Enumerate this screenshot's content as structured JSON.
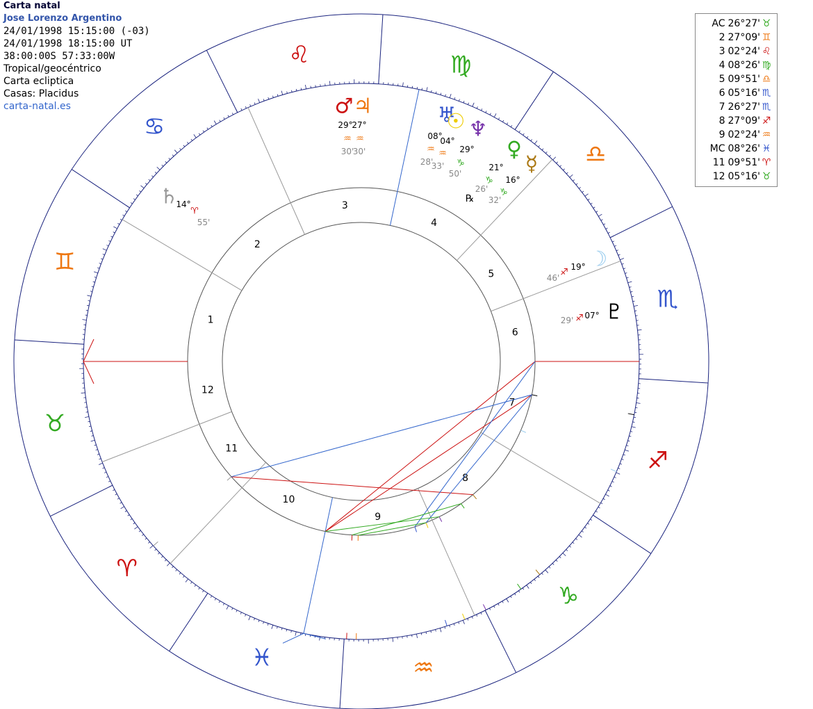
{
  "header": {
    "title": "Carta natal",
    "name": "Jose Lorenzo Argentino",
    "local_time": "24/01/1998 15:15:00 (-03)",
    "ut_time": "24/01/1998 18:15:00 UT",
    "coords": "38:00:00S 57:33:00W",
    "system": "Tropical/geocéntrico",
    "chart_type": "Carta ecliptica",
    "houses": "Casas: Placidus",
    "site": "carta-natal.es"
  },
  "house_cusps_table": [
    {
      "label": "AC",
      "value": "26°27'",
      "sign": "♉",
      "color": "#33aa22"
    },
    {
      "label": "2",
      "value": "27°09'",
      "sign": "♊",
      "color": "#ee7711"
    },
    {
      "label": "3",
      "value": "02°24'",
      "sign": "♌",
      "color": "#cc1111"
    },
    {
      "label": "4",
      "value": "08°26'",
      "sign": "♍",
      "color": "#33aa22"
    },
    {
      "label": "5",
      "value": "09°51'",
      "sign": "♎",
      "color": "#ee7711"
    },
    {
      "label": "6",
      "value": "05°16'",
      "sign": "♏",
      "color": "#3355cc"
    },
    {
      "label": "7",
      "value": "26°27'",
      "sign": "♏",
      "color": "#3355cc"
    },
    {
      "label": "8",
      "value": "27°09'",
      "sign": "♐",
      "color": "#cc1111"
    },
    {
      "label": "9",
      "value": "02°24'",
      "sign": "♒",
      "color": "#ee7711"
    },
    {
      "label": "MC",
      "value": "08°26'",
      "sign": "♓",
      "color": "#3355cc"
    },
    {
      "label": "11",
      "value": "09°51'",
      "sign": "♈",
      "color": "#cc1111"
    },
    {
      "label": "12",
      "value": "05°16'",
      "sign": "♉",
      "color": "#33aa22"
    }
  ],
  "zodiac_signs": [
    {
      "name": "aries",
      "glyph": "♈",
      "color": "#cc1111"
    },
    {
      "name": "taurus",
      "glyph": "♉",
      "color": "#33aa22"
    },
    {
      "name": "gemini",
      "glyph": "♊",
      "color": "#ee7711"
    },
    {
      "name": "cancer",
      "glyph": "♋",
      "color": "#3355cc"
    },
    {
      "name": "leo",
      "glyph": "♌",
      "color": "#cc1111"
    },
    {
      "name": "virgo",
      "glyph": "♍",
      "color": "#33aa22"
    },
    {
      "name": "libra",
      "glyph": "♎",
      "color": "#ee7711"
    },
    {
      "name": "scorpio",
      "glyph": "♏",
      "color": "#3355cc"
    },
    {
      "name": "sagittarius",
      "glyph": "♐",
      "color": "#cc1111"
    },
    {
      "name": "capricorn",
      "glyph": "♑",
      "color": "#33aa22"
    },
    {
      "name": "aquarius",
      "glyph": "♒",
      "color": "#ee7711"
    },
    {
      "name": "pisces",
      "glyph": "♓",
      "color": "#3355cc"
    }
  ],
  "house_numbers": [
    "1",
    "2",
    "3",
    "4",
    "5",
    "6",
    "7",
    "8",
    "9",
    "10",
    "11",
    "12"
  ],
  "planets": [
    {
      "name": "mars",
      "glyph": "♂",
      "color": "#cc1111",
      "deg": "29°",
      "sign_glyph": "♒",
      "min": "30'"
    },
    {
      "name": "jupiter",
      "glyph": "♃",
      "color": "#ee7711",
      "deg": "27°",
      "sign_glyph": "♒",
      "min": "30'"
    },
    {
      "name": "uranus",
      "glyph": "♅",
      "color": "#3355cc",
      "deg": "08°",
      "sign_glyph": "♒",
      "min": "28'"
    },
    {
      "name": "sun",
      "glyph": "☉",
      "color": "#eecc00",
      "deg": "04°",
      "sign_glyph": "♒",
      "min": "33'"
    },
    {
      "name": "neptune",
      "glyph": "♆",
      "color": "#7733aa",
      "deg": "29°",
      "sign_glyph": "♑",
      "min": "50'"
    },
    {
      "name": "venus",
      "glyph": "♀",
      "color": "#33aa22",
      "deg": "21°",
      "sign_glyph": "♑",
      "min": "26'",
      "retro": "℞"
    },
    {
      "name": "mercury",
      "glyph": "☿",
      "color": "#aa7711",
      "deg": "16°",
      "sign_glyph": "♑",
      "min": "32'"
    },
    {
      "name": "moon",
      "glyph": "☽",
      "color": "#99ccee",
      "deg": "19°",
      "sign_glyph": "♐",
      "min": "46'"
    },
    {
      "name": "pluto",
      "glyph": "♇",
      "color": "#000000",
      "deg": "07°",
      "sign_glyph": "♐",
      "min": "29'"
    },
    {
      "name": "saturn",
      "glyph": "♄",
      "color": "#999999",
      "deg": "14°",
      "sign_glyph": "♈",
      "min": "55'"
    }
  ],
  "colors": {
    "outer_ring": "#1a237e",
    "axis": "#cc1111",
    "aspect_blue": "#3366cc",
    "aspect_red": "#cc1111",
    "aspect_green": "#33aa22",
    "cusp_line": "#999999"
  }
}
